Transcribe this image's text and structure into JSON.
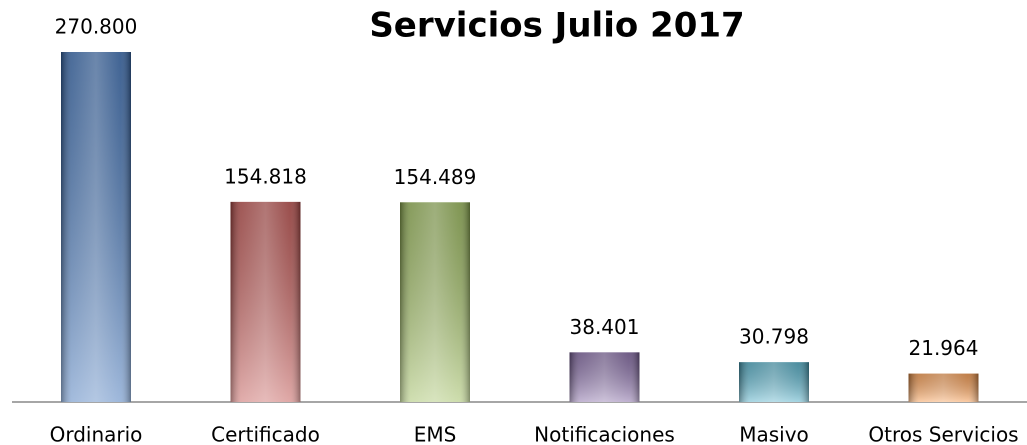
{
  "chart_data": {
    "type": "bar",
    "title": "Servicios Julio 2017",
    "categories": [
      "Ordinario",
      "Certificado",
      "EMS",
      "Notificaciones",
      "Masivo",
      "Otros Servicios"
    ],
    "values": [
      270800,
      154818,
      154489,
      38401,
      30798,
      21964
    ],
    "value_labels": [
      "270.800",
      "154.818",
      "154.489",
      "38.401",
      "30.798",
      "21.964"
    ],
    "colors": [
      "#3b6fb6",
      "#c0504d",
      "#9bbb59",
      "#8064a2",
      "#4bacc6",
      "#f79646"
    ]
  }
}
